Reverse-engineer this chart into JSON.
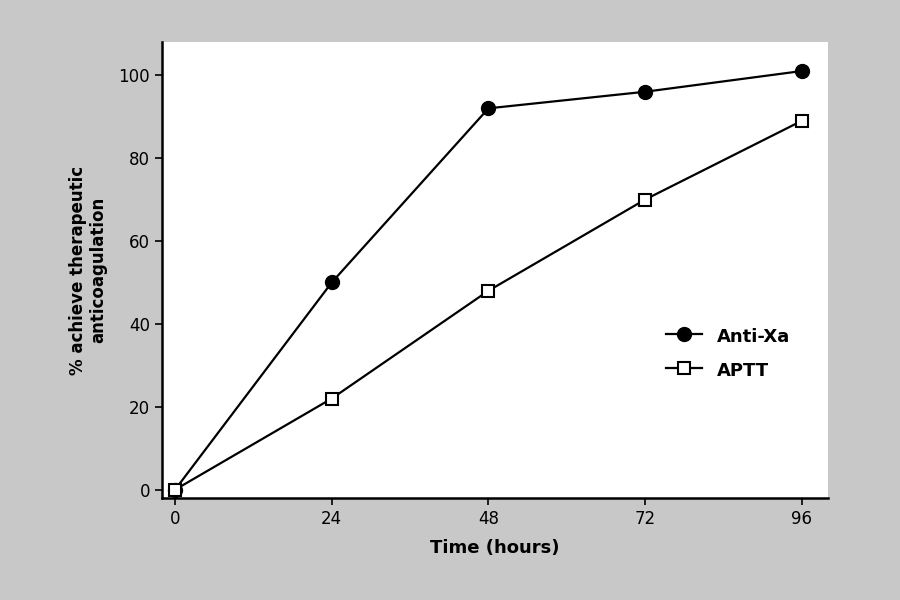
{
  "anti_xa_x": [
    0,
    24,
    48,
    72,
    96
  ],
  "anti_xa_y": [
    0,
    50,
    92,
    96,
    101
  ],
  "aptt_x": [
    0,
    24,
    48,
    72,
    96
  ],
  "aptt_y": [
    0,
    22,
    48,
    70,
    89
  ],
  "xlabel": "Time (hours)",
  "ylabel": "% achieve therapeutic\nanticoagulation",
  "xlim": [
    -2,
    100
  ],
  "ylim": [
    -2,
    108
  ],
  "xticks": [
    0,
    24,
    48,
    72,
    96
  ],
  "yticks": [
    0,
    20,
    40,
    60,
    80,
    100
  ],
  "legend_anti_xa": "Anti-Xa",
  "legend_aptt": "APTT",
  "background_color": "#c8c8c8",
  "plot_bg_color": "#ffffff",
  "line_color": "#000000",
  "xlabel_fontsize": 13,
  "ylabel_fontsize": 12,
  "tick_fontsize": 12,
  "legend_fontsize": 13
}
